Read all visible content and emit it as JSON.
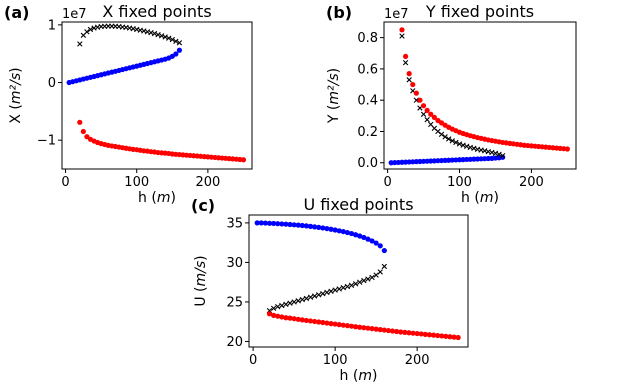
{
  "chart_data": [
    {
      "type": "scatter",
      "panel": "(a)",
      "title": "X fixed points",
      "xlabel": "h",
      "xunit": "m",
      "ylabel": "X",
      "yunit": "m²/s",
      "y_exponent_label": "1e7",
      "xlim": [
        -5,
        262
      ],
      "ylim": [
        -15000000.0,
        10500000.0
      ],
      "xticks": [
        0,
        100,
        200
      ],
      "yticks": [
        -10000000.0,
        0,
        10000000.0
      ],
      "xtick_labels": [
        "0",
        "100",
        "200"
      ],
      "ytick_labels": [
        "−1",
        "0",
        "1"
      ],
      "grid": false,
      "series": [
        {
          "color": "#0000ff",
          "marker": "circle",
          "x": [
            5,
            10,
            15,
            20,
            25,
            30,
            35,
            40,
            45,
            50,
            55,
            60,
            65,
            70,
            75,
            80,
            85,
            90,
            95,
            100,
            105,
            110,
            115,
            120,
            125,
            130,
            135,
            140,
            145,
            150,
            155,
            160
          ],
          "y": [
            0,
            150000.0,
            300000.0,
            450000.0,
            600000.0,
            750000.0,
            900000.0,
            1050000.0,
            1200000.0,
            1350000.0,
            1500000.0,
            1650000.0,
            1800000.0,
            1950000.0,
            2100000.0,
            2250000.0,
            2400000.0,
            2550000.0,
            2700000.0,
            2850000.0,
            3000000.0,
            3150000.0,
            3300000.0,
            3450000.0,
            3600000.0,
            3750000.0,
            3900000.0,
            4050000.0,
            4250000.0,
            4550000.0,
            4950000.0,
            5600000.0
          ]
        },
        {
          "color": "#000000",
          "marker": "x",
          "x": [
            20,
            25,
            30,
            35,
            40,
            45,
            50,
            55,
            60,
            65,
            70,
            75,
            80,
            85,
            90,
            95,
            100,
            105,
            110,
            115,
            120,
            125,
            130,
            135,
            140,
            145,
            150,
            155,
            160
          ],
          "y": [
            6700000.0,
            8200000.0,
            8800000.0,
            9200000.0,
            9450000.0,
            9600000.0,
            9700000.0,
            9750000.0,
            9780000.0,
            9780000.0,
            9750000.0,
            9700000.0,
            9620000.0,
            9550000.0,
            9450000.0,
            9350000.0,
            9220000.0,
            9080000.0,
            8950000.0,
            8800000.0,
            8650000.0,
            8500000.0,
            8300000.0,
            8100000.0,
            7900000.0,
            7700000.0,
            7450000.0,
            7150000.0,
            6900000.0
          ]
        },
        {
          "color": "#ff0000",
          "marker": "circle",
          "x": [
            20,
            25,
            30,
            35,
            40,
            45,
            50,
            55,
            60,
            65,
            70,
            75,
            80,
            85,
            90,
            95,
            100,
            105,
            110,
            115,
            120,
            125,
            130,
            135,
            140,
            145,
            150,
            155,
            160,
            165,
            170,
            175,
            180,
            185,
            190,
            195,
            200,
            205,
            210,
            215,
            220,
            225,
            230,
            235,
            240,
            245,
            250
          ],
          "y": [
            -6900000.0,
            -8500000.0,
            -9400000.0,
            -9850000.0,
            -10150000.0,
            -10400000.0,
            -10600000.0,
            -10750000.0,
            -10900000.0,
            -11000000.0,
            -11100000.0,
            -11200000.0,
            -11300000.0,
            -11400000.0,
            -11500000.0,
            -11600000.0,
            -11650000.0,
            -11750000.0,
            -11850000.0,
            -11900000.0,
            -12000000.0,
            -12050000.0,
            -12150000.0,
            -12200000.0,
            -12250000.0,
            -12300000.0,
            -12400000.0,
            -12450000.0,
            -12500000.0,
            -12550000.0,
            -12600000.0,
            -12650000.0,
            -12700000.0,
            -12750000.0,
            -12800000.0,
            -12850000.0,
            -12900000.0,
            -12950000.0,
            -13000000.0,
            -13050000.0,
            -13100000.0,
            -13150000.0,
            -13200000.0,
            -13250000.0,
            -13300000.0,
            -13350000.0,
            -13400000.0
          ]
        }
      ]
    },
    {
      "type": "scatter",
      "panel": "(b)",
      "title": "Y fixed points",
      "xlabel": "h",
      "xunit": "m",
      "ylabel": "Y",
      "yunit": "m²/s",
      "y_exponent_label": "1e7",
      "xlim": [
        -5,
        262
      ],
      "ylim": [
        -400000.0,
        9000000.0
      ],
      "xticks": [
        0,
        100,
        200
      ],
      "yticks": [
        0,
        2000000.0,
        4000000.0,
        6000000.0,
        8000000.0
      ],
      "xtick_labels": [
        "0",
        "100",
        "200"
      ],
      "ytick_labels": [
        "0.0",
        "0.2",
        "0.4",
        "0.6",
        "0.8"
      ],
      "grid": false,
      "series": [
        {
          "color": "#0000ff",
          "marker": "circle",
          "x": [
            5,
            10,
            15,
            20,
            25,
            30,
            35,
            40,
            45,
            50,
            55,
            60,
            65,
            70,
            75,
            80,
            85,
            90,
            95,
            100,
            105,
            110,
            115,
            120,
            125,
            130,
            135,
            140,
            145,
            150,
            155,
            160
          ],
          "y": [
            0,
            10000.0,
            20000.0,
            30000.0,
            40000.0,
            50000.0,
            60000.0,
            70000.0,
            80000.0,
            90000.0,
            100000.0,
            110000.0,
            120000.0,
            130000.0,
            140000.0,
            150000.0,
            160000.0,
            170000.0,
            180000.0,
            190000.0,
            200000.0,
            210000.0,
            220000.0,
            230000.0,
            240000.0,
            250000.0,
            260000.0,
            270000.0,
            280000.0,
            300000.0,
            320000.0,
            350000.0
          ]
        },
        {
          "color": "#000000",
          "marker": "x",
          "x": [
            20,
            25,
            30,
            35,
            40,
            45,
            50,
            55,
            60,
            65,
            70,
            75,
            80,
            85,
            90,
            95,
            100,
            105,
            110,
            115,
            120,
            125,
            130,
            135,
            140,
            145,
            150,
            155,
            160
          ],
          "y": [
            8100000.0,
            6400000.0,
            5300000.0,
            4600000.0,
            4000000.0,
            3500000.0,
            3100000.0,
            2750000.0,
            2450000.0,
            2200000.0,
            2000000.0,
            1820000.0,
            1660000.0,
            1520000.0,
            1400000.0,
            1300000.0,
            1200000.0,
            1120000.0,
            1050000.0,
            980000.0,
            920000.0,
            860000.0,
            810000.0,
            760000.0,
            710000.0,
            660000.0,
            600000.0,
            540000.0,
            450000.0
          ]
        },
        {
          "color": "#ff0000",
          "marker": "circle",
          "x": [
            20,
            25,
            30,
            35,
            40,
            45,
            50,
            55,
            60,
            65,
            70,
            75,
            80,
            85,
            90,
            95,
            100,
            105,
            110,
            115,
            120,
            125,
            130,
            135,
            140,
            145,
            150,
            155,
            160,
            165,
            170,
            175,
            180,
            185,
            190,
            195,
            200,
            205,
            210,
            215,
            220,
            225,
            230,
            235,
            240,
            245,
            250
          ],
          "y": [
            8500000.0,
            6800000.0,
            5700000.0,
            5000000.0,
            4450000.0,
            4000000.0,
            3650000.0,
            3350000.0,
            3100000.0,
            2900000.0,
            2700000.0,
            2550000.0,
            2400000.0,
            2270000.0,
            2150000.0,
            2050000.0,
            1950000.0,
            1870000.0,
            1800000.0,
            1730000.0,
            1670000.0,
            1610000.0,
            1560000.0,
            1510000.0,
            1460000.0,
            1420000.0,
            1380000.0,
            1340000.0,
            1300000.0,
            1270000.0,
            1240000.0,
            1210000.0,
            1180000.0,
            1150000.0,
            1120000.0,
            1100000.0,
            1080000.0,
            1060000.0,
            1040000.0,
            1020000.0,
            1000000.0,
            980000.0,
            960000.0,
            940000.0,
            920000.0,
            900000.0,
            880000.0
          ]
        }
      ]
    },
    {
      "type": "scatter",
      "panel": "(c)",
      "title": "U fixed points",
      "xlabel": "h",
      "xunit": "m",
      "ylabel": "U",
      "yunit": "m/s",
      "y_exponent_label": "",
      "xlim": [
        -5,
        262
      ],
      "ylim": [
        19.3,
        36.0
      ],
      "xticks": [
        0,
        100,
        200
      ],
      "yticks": [
        20,
        25,
        30,
        35
      ],
      "xtick_labels": [
        "0",
        "100",
        "200"
      ],
      "ytick_labels": [
        "20",
        "25",
        "30",
        "35"
      ],
      "grid": false,
      "series": [
        {
          "color": "#0000ff",
          "marker": "circle",
          "x": [
            5,
            10,
            15,
            20,
            25,
            30,
            35,
            40,
            45,
            50,
            55,
            60,
            65,
            70,
            75,
            80,
            85,
            90,
            95,
            100,
            105,
            110,
            115,
            120,
            125,
            130,
            135,
            140,
            145,
            150,
            155,
            160
          ],
          "y": [
            35.0,
            35.0,
            34.98,
            34.95,
            34.93,
            34.9,
            34.87,
            34.84,
            34.8,
            34.76,
            34.72,
            34.67,
            34.62,
            34.56,
            34.5,
            34.43,
            34.36,
            34.28,
            34.2,
            34.1,
            34.0,
            33.9,
            33.78,
            33.65,
            33.5,
            33.34,
            33.16,
            32.95,
            32.72,
            32.45,
            32.1,
            31.5
          ]
        },
        {
          "color": "#000000",
          "marker": "x",
          "x": [
            20,
            25,
            30,
            35,
            40,
            45,
            50,
            55,
            60,
            65,
            70,
            75,
            80,
            85,
            90,
            95,
            100,
            105,
            110,
            115,
            120,
            125,
            130,
            135,
            140,
            145,
            150,
            155,
            160
          ],
          "y": [
            23.9,
            24.2,
            24.4,
            24.55,
            24.7,
            24.85,
            25.0,
            25.15,
            25.3,
            25.45,
            25.6,
            25.75,
            25.9,
            26.05,
            26.2,
            26.35,
            26.5,
            26.65,
            26.8,
            26.95,
            27.1,
            27.3,
            27.5,
            27.7,
            27.9,
            28.1,
            28.4,
            28.8,
            29.5
          ]
        },
        {
          "color": "#ff0000",
          "marker": "circle",
          "x": [
            20,
            25,
            30,
            35,
            40,
            45,
            50,
            55,
            60,
            65,
            70,
            75,
            80,
            85,
            90,
            95,
            100,
            105,
            110,
            115,
            120,
            125,
            130,
            135,
            140,
            145,
            150,
            155,
            160,
            165,
            170,
            175,
            180,
            185,
            190,
            195,
            200,
            205,
            210,
            215,
            220,
            225,
            230,
            235,
            240,
            245,
            250
          ],
          "y": [
            23.5,
            23.3,
            23.2,
            23.1,
            23.0,
            22.95,
            22.88,
            22.8,
            22.73,
            22.66,
            22.6,
            22.53,
            22.46,
            22.4,
            22.33,
            22.26,
            22.2,
            22.13,
            22.06,
            22.0,
            21.93,
            21.86,
            21.8,
            21.74,
            21.68,
            21.62,
            21.56,
            21.5,
            21.44,
            21.38,
            21.32,
            21.26,
            21.2,
            21.15,
            21.1,
            21.05,
            21.0,
            20.95,
            20.9,
            20.85,
            20.8,
            20.75,
            20.7,
            20.65,
            20.6,
            20.55,
            20.5
          ]
        }
      ]
    }
  ]
}
